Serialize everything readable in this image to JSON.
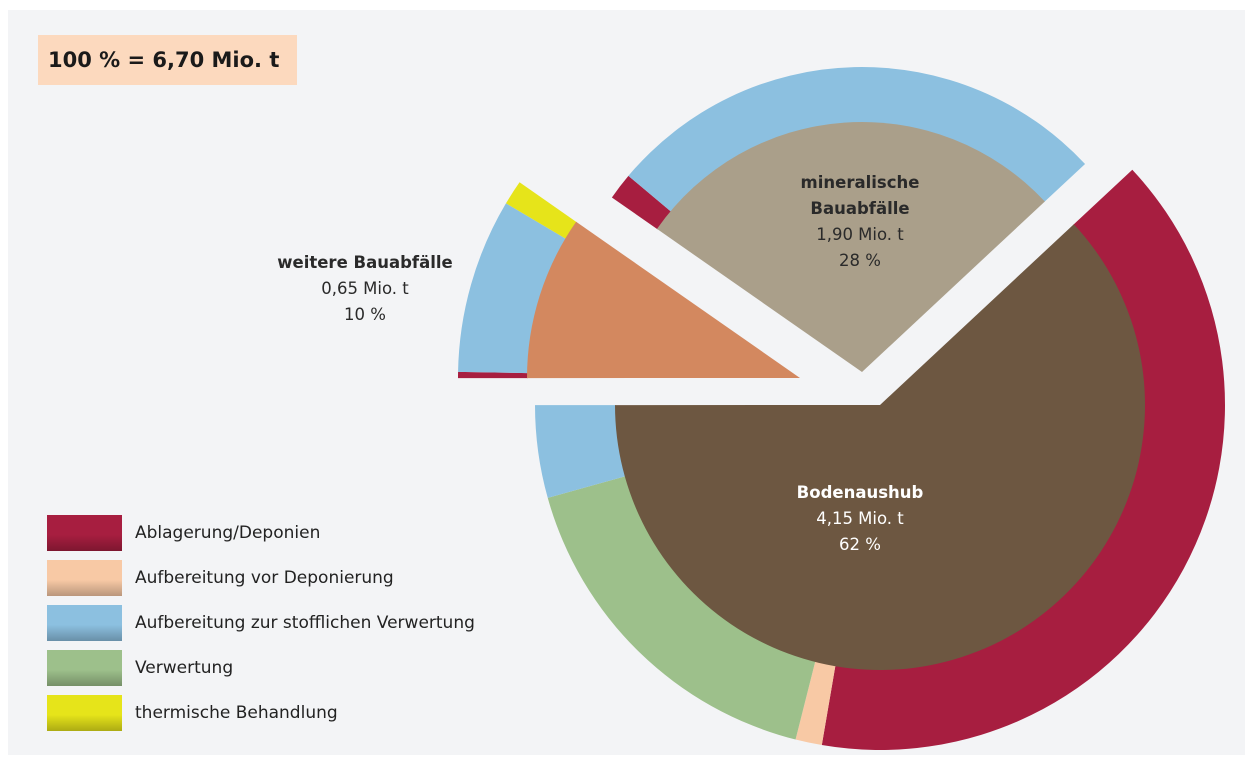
{
  "chart_data": {
    "type": "pie",
    "title": "100 % = 6,70 Mio. t",
    "categories": [
      "Bodenaushub",
      "mineralische\nBauabfälle",
      "weitere Bauabfälle"
    ],
    "values": [
      4.15,
      1.9,
      0.65
    ],
    "value_labels": [
      "4,15 Mio. t",
      "1,90 Mio. t",
      "0,65 Mio. t"
    ],
    "shares": [
      62,
      28,
      10
    ],
    "share_labels": [
      "62 %",
      "28 %",
      "10 %"
    ],
    "colors": [
      "#6d5741",
      "#aa9f8a",
      "#d3885f"
    ],
    "label_colors": [
      "#ffffff",
      "#2a2a2a",
      "#2a2a2a"
    ],
    "series": [
      {
        "name": "Ablagerung/Deponien",
        "color": "#a71e40",
        "values": [
          64,
          5,
          3
        ]
      },
      {
        "name": "Aufbereitung vor Deponierung",
        "color": "#f8c9a5",
        "values": [
          2,
          0,
          0
        ]
      },
      {
        "name": "Aufbereitung zur stofflichen Verwertung",
        "color": "#8cc0e0",
        "values": [
          7,
          95,
          85
        ]
      },
      {
        "name": "Verwertung",
        "color": "#9dc08b",
        "values": [
          27,
          0,
          0
        ]
      },
      {
        "name": "thermische Behandlung",
        "color": "#e6e41a",
        "values": [
          0,
          0,
          12
        ]
      }
    ]
  }
}
